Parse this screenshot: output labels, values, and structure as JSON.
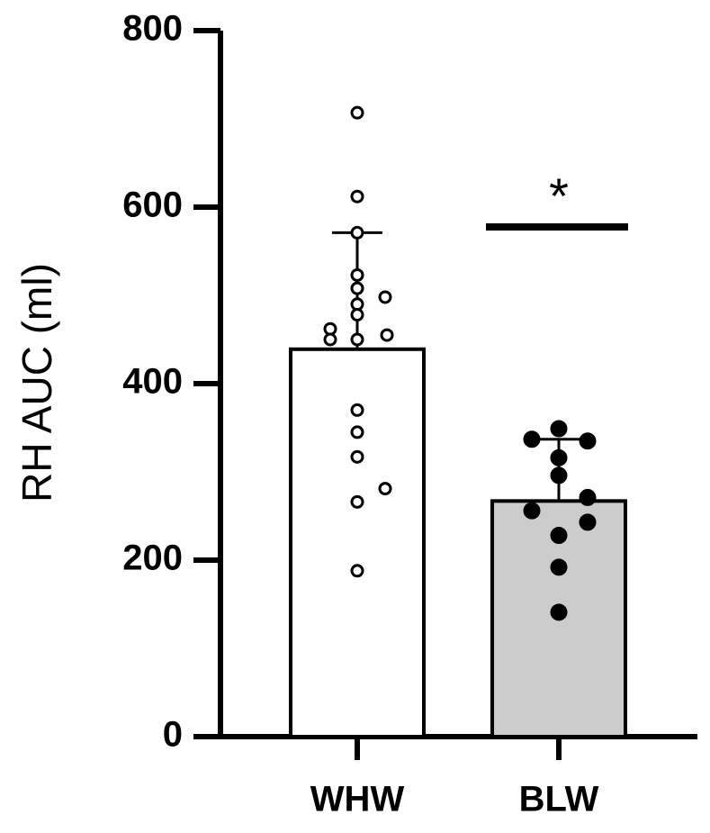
{
  "chart_data": {
    "type": "bar",
    "y_label": "RH AUC (ml)",
    "categories": [
      "WHW",
      "BLW"
    ],
    "values": [
      439,
      267
    ],
    "errors": [
      132,
      70
    ],
    "colors": [
      "#ffffff",
      "#cccccc"
    ],
    "point_fills": [
      "#ffffff",
      "#000000"
    ],
    "points": [
      [
        707,
        612,
        571,
        523,
        508,
        498,
        490,
        478,
        462,
        455,
        450,
        450,
        370,
        345,
        317,
        281,
        266,
        188
      ],
      [
        349,
        337,
        335,
        316,
        296,
        271,
        256,
        243,
        228,
        192,
        141
      ]
    ],
    "annotation": "*",
    "ylim": [
      0,
      800
    ],
    "yticks": [
      0,
      200,
      400,
      600,
      800
    ]
  }
}
